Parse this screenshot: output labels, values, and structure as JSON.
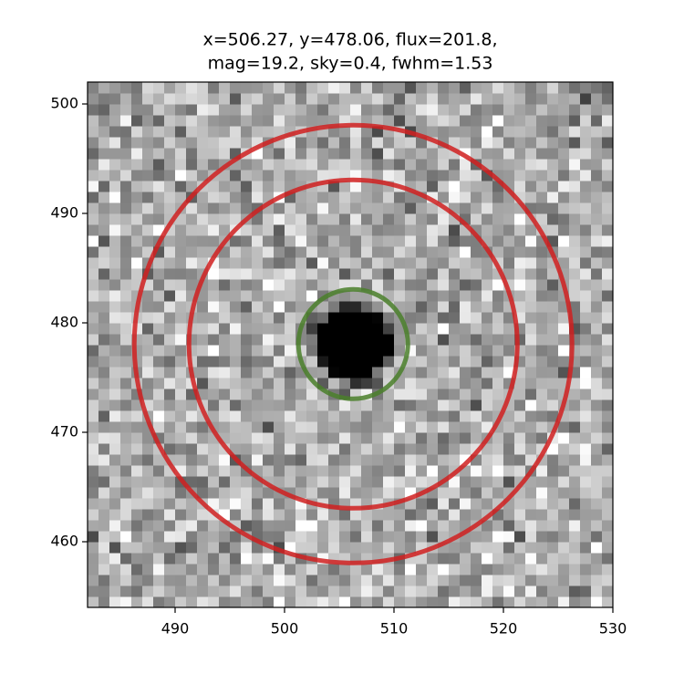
{
  "chart_data": {
    "type": "image",
    "title": [
      "x=506.27, y=478.06, flux=201.8,",
      "mag=19.2, sky=0.4, fwhm=1.53"
    ],
    "xlim": [
      482,
      530
    ],
    "ylim": [
      454,
      502
    ],
    "xticks": [
      490,
      500,
      510,
      520,
      530
    ],
    "yticks": [
      460,
      470,
      480,
      490,
      500
    ],
    "apertures": [
      {
        "x": 506.27,
        "y": 478.06,
        "r": 5,
        "color": "#4a7f2a"
      },
      {
        "x": 506.27,
        "y": 478.06,
        "r": 15,
        "color": "#d02020"
      },
      {
        "x": 506.27,
        "y": 478.06,
        "r": 20,
        "color": "#d02020"
      }
    ]
  }
}
